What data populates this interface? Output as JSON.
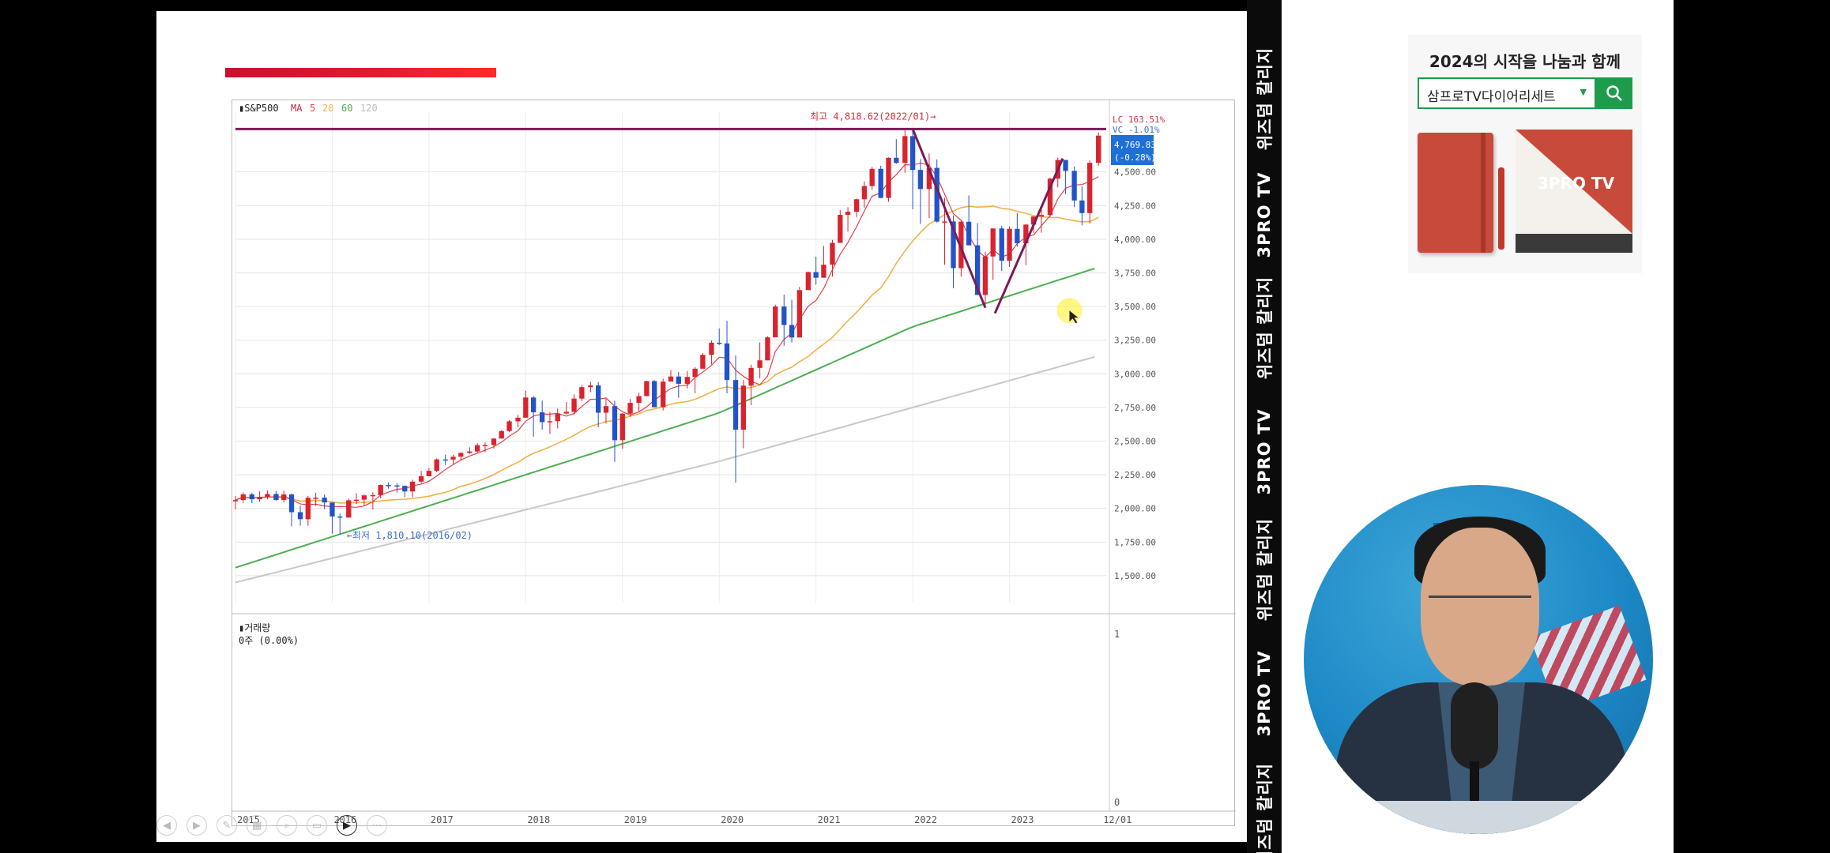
{
  "vertical_banner": {
    "items": [
      "위즈덤 칼리지",
      "3PRO TV",
      "위즈덤 칼리지",
      "3PRO TV",
      "위즈덤 칼리지",
      "3PRO TV",
      "위즈덤 칼리지"
    ]
  },
  "ad": {
    "title": "2024의 시작을 나눔과 함께",
    "search_value": "삼프로TV다이어리세트",
    "calendar_logo": "3PRO TV"
  },
  "chart_panel": {
    "volume_label": "거래량",
    "volume_value": "0주 (0.00%)",
    "volume_ticks": [
      "1",
      "0"
    ],
    "price_box_value": "4,769.83",
    "price_box_change": "(-0.28%)",
    "lc_label": "LC 163.51%",
    "vc_label": "VC -1.01%",
    "colors": {
      "up": "#d9232e",
      "down": "#2353c9",
      "ma5": "#e0424a",
      "ma20": "#f0b24a",
      "ma60": "#4caf50",
      "ma120": "#c8c8c8",
      "resistance": "#7a1c5a",
      "trendline": "#7a1c5a",
      "price_box": "#1e6fd6"
    }
  },
  "chart_data": {
    "type": "candlestick",
    "symbol": "S&P500",
    "legend": [
      {
        "name": "MA",
        "color": "#d9232e"
      },
      {
        "name": "5",
        "color": "#e0424a"
      },
      {
        "name": "20",
        "color": "#f0b24a"
      },
      {
        "name": "60",
        "color": "#4caf50"
      },
      {
        "name": "120",
        "color": "#bdbdbd"
      }
    ],
    "x_tick_labels": [
      "2015",
      "2016",
      "2017",
      "2018",
      "2019",
      "2020",
      "2021",
      "2022",
      "2023",
      "12/01"
    ],
    "y_tick_labels": [
      "1,500.00",
      "1,750.00",
      "2,000.00",
      "2,250.00",
      "2,500.00",
      "2,750.00",
      "3,000.00",
      "3,250.00",
      "3,500.00",
      "3,750.00",
      "4,000.00",
      "4,250.00",
      "4,500.00",
      "4,769.83"
    ],
    "ylim": [
      1300,
      4950
    ],
    "annotations": {
      "high": {
        "text": "최고 4,818.62(2022/01)→",
        "x": 2022.0,
        "y": 4818.62
      },
      "low": {
        "text": "←최저 1,810.10(2016/02)",
        "x": 2016.1,
        "y": 1810.1
      }
    },
    "resistance_level": 4818.62,
    "trendlines": [
      {
        "from": [
          2022.0,
          4818.62
        ],
        "to": [
          2022.75,
          3491.6
        ]
      },
      {
        "from": [
          2022.85,
          3450
        ],
        "to": [
          2023.55,
          4600
        ]
      }
    ],
    "candles": [
      [
        2015.0,
        2058.2,
        2093,
        1993,
        2062
      ],
      [
        2015.08,
        2062,
        2119,
        2040,
        2104.5
      ],
      [
        2015.17,
        2104.5,
        2116,
        2039,
        2068
      ],
      [
        2015.25,
        2068,
        2126,
        2048,
        2086
      ],
      [
        2015.33,
        2086,
        2134,
        2067,
        2107
      ],
      [
        2015.42,
        2107,
        2129,
        2056,
        2063
      ],
      [
        2015.5,
        2063,
        2132,
        2044,
        2104
      ],
      [
        2015.58,
        2104,
        2112,
        1867,
        1972
      ],
      [
        2015.67,
        1972,
        2020,
        1872,
        1920
      ],
      [
        2015.75,
        1920,
        2094,
        1871,
        2079
      ],
      [
        2015.83,
        2079,
        2116,
        2019,
        2080
      ],
      [
        2015.92,
        2080,
        2104,
        1993,
        2044
      ],
      [
        2016.0,
        2044,
        2038,
        1812,
        1940
      ],
      [
        2016.08,
        1940,
        1962,
        1810,
        1932
      ],
      [
        2016.17,
        1932,
        2072,
        1931,
        2060
      ],
      [
        2016.25,
        2060,
        2112,
        2033,
        2065
      ],
      [
        2016.33,
        2065,
        2103,
        2025,
        2097
      ],
      [
        2016.42,
        2097,
        2120,
        1992,
        2099
      ],
      [
        2016.5,
        2099,
        2178,
        2075,
        2174
      ],
      [
        2016.58,
        2174,
        2194,
        2147,
        2171
      ],
      [
        2016.67,
        2171,
        2188,
        2119,
        2168
      ],
      [
        2016.75,
        2168,
        2170,
        2084,
        2126
      ],
      [
        2016.83,
        2126,
        2214,
        2084,
        2199
      ],
      [
        2016.92,
        2199,
        2278,
        2187,
        2239
      ],
      [
        2017.0,
        2239,
        2300,
        2245,
        2279
      ],
      [
        2017.08,
        2279,
        2371,
        2268,
        2364
      ],
      [
        2017.17,
        2364,
        2400,
        2322,
        2363
      ],
      [
        2017.25,
        2363,
        2398,
        2328,
        2384
      ],
      [
        2017.33,
        2384,
        2418,
        2353,
        2412
      ],
      [
        2017.42,
        2412,
        2454,
        2405,
        2423
      ],
      [
        2017.5,
        2423,
        2484,
        2407,
        2470
      ],
      [
        2017.58,
        2470,
        2490,
        2417,
        2471
      ],
      [
        2017.67,
        2471,
        2519,
        2446,
        2519
      ],
      [
        2017.75,
        2519,
        2582,
        2520,
        2575
      ],
      [
        2017.83,
        2575,
        2657,
        2566,
        2647
      ],
      [
        2017.92,
        2647,
        2694,
        2605,
        2674
      ],
      [
        2018.0,
        2674,
        2873,
        2682,
        2824
      ],
      [
        2018.08,
        2824,
        2835,
        2533,
        2714
      ],
      [
        2018.17,
        2714,
        2801,
        2585,
        2641
      ],
      [
        2018.25,
        2641,
        2717,
        2553,
        2648
      ],
      [
        2018.33,
        2648,
        2742,
        2594,
        2705
      ],
      [
        2018.42,
        2705,
        2791,
        2698,
        2718
      ],
      [
        2018.5,
        2718,
        2848,
        2698,
        2816
      ],
      [
        2018.58,
        2816,
        2916,
        2796,
        2901
      ],
      [
        2018.67,
        2901,
        2940,
        2864,
        2914
      ],
      [
        2018.75,
        2914,
        2939,
        2603,
        2711
      ],
      [
        2018.83,
        2711,
        2815,
        2631,
        2760
      ],
      [
        2018.92,
        2760,
        2800,
        2346,
        2507
      ],
      [
        2019.0,
        2507,
        2708,
        2443,
        2704
      ],
      [
        2019.08,
        2704,
        2813,
        2681,
        2784
      ],
      [
        2019.17,
        2784,
        2860,
        2722,
        2834
      ],
      [
        2019.25,
        2834,
        2949,
        2848,
        2946
      ],
      [
        2019.33,
        2946,
        2954,
        2750,
        2752
      ],
      [
        2019.42,
        2752,
        2964,
        2728,
        2942
      ],
      [
        2019.5,
        2942,
        3028,
        2952,
        2980
      ],
      [
        2019.58,
        2980,
        3014,
        2822,
        2926
      ],
      [
        2019.67,
        2926,
        3021,
        2891,
        2977
      ],
      [
        2019.75,
        2977,
        3050,
        2855,
        3038
      ],
      [
        2019.83,
        3038,
        3155,
        3050,
        3141
      ],
      [
        2019.92,
        3141,
        3247,
        3070,
        3231
      ],
      [
        2020.0,
        3231,
        3338,
        3214,
        3226
      ],
      [
        2020.08,
        3226,
        3394,
        2855,
        2954
      ],
      [
        2020.17,
        2954,
        3136,
        2192,
        2585
      ],
      [
        2020.25,
        2585,
        2954,
        2447,
        2912
      ],
      [
        2020.33,
        2912,
        3068,
        2767,
        3044
      ],
      [
        2020.42,
        3044,
        3233,
        2966,
        3100
      ],
      [
        2020.5,
        3100,
        3279,
        3101,
        3271
      ],
      [
        2020.58,
        3271,
        3514,
        3284,
        3500
      ],
      [
        2020.67,
        3500,
        3588,
        3209,
        3363
      ],
      [
        2020.75,
        3363,
        3550,
        3233,
        3270
      ],
      [
        2020.83,
        3270,
        3646,
        3279,
        3622
      ],
      [
        2020.92,
        3622,
        3760,
        3633,
        3756
      ],
      [
        2021.0,
        3756,
        3870,
        3662,
        3714
      ],
      [
        2021.08,
        3714,
        3950,
        3725,
        3811
      ],
      [
        2021.17,
        3811,
        3995,
        3723,
        3973
      ],
      [
        2021.25,
        3973,
        4218,
        3995,
        4181
      ],
      [
        2021.33,
        4181,
        4238,
        4056,
        4204
      ],
      [
        2021.42,
        4204,
        4302,
        4164,
        4297
      ],
      [
        2021.5,
        4297,
        4429,
        4233,
        4395
      ],
      [
        2021.58,
        4395,
        4538,
        4367,
        4523
      ],
      [
        2021.67,
        4523,
        4546,
        4305,
        4307
      ],
      [
        2021.75,
        4307,
        4608,
        4278,
        4605
      ],
      [
        2021.83,
        4605,
        4743,
        4560,
        4567
      ],
      [
        2021.92,
        4567,
        4808,
        4495,
        4766
      ],
      [
        2022.0,
        4766,
        4818,
        4222,
        4515
      ],
      [
        2022.08,
        4515,
        4595,
        4114,
        4373
      ],
      [
        2022.17,
        4373,
        4637,
        4157,
        4530
      ],
      [
        2022.25,
        4530,
        4593,
        4124,
        4131
      ],
      [
        2022.33,
        4131,
        4307,
        3810,
        4132
      ],
      [
        2022.42,
        4132,
        4177,
        3636,
        3785
      ],
      [
        2022.5,
        3785,
        4140,
        3721,
        4130
      ],
      [
        2022.58,
        4130,
        4325,
        3954,
        3955
      ],
      [
        2022.67,
        3955,
        4119,
        3584,
        3586
      ],
      [
        2022.75,
        3586,
        3905,
        3491,
        3872
      ],
      [
        2022.83,
        3872,
        4080,
        3698,
        4080
      ],
      [
        2022.92,
        4080,
        4100,
        3764,
        3840
      ],
      [
        2023.0,
        3840,
        4095,
        3794,
        4077
      ],
      [
        2023.08,
        4077,
        4195,
        3943,
        3970
      ],
      [
        2023.17,
        3970,
        4110,
        3808,
        4109
      ],
      [
        2023.25,
        4109,
        4170,
        4048,
        4169
      ],
      [
        2023.33,
        4169,
        4231,
        4048,
        4180
      ],
      [
        2023.42,
        4180,
        4458,
        4166,
        4450
      ],
      [
        2023.5,
        4450,
        4607,
        4385,
        4589
      ],
      [
        2023.58,
        4589,
        4578,
        4335,
        4508
      ],
      [
        2023.67,
        4508,
        4541,
        4238,
        4288
      ],
      [
        2023.75,
        4288,
        4393,
        4103,
        4194
      ],
      [
        2023.83,
        4194,
        4587,
        4117,
        4568
      ],
      [
        2023.92,
        4568,
        4793,
        4546,
        4769.83
      ]
    ]
  }
}
